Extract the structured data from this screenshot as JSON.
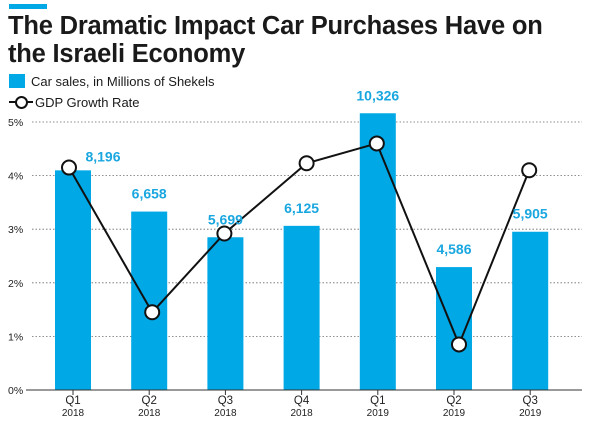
{
  "title": "The Dramatic Impact Car Purchases Have on the Israeli Economy",
  "colors": {
    "accent": "#00a8e6",
    "line": "#111111",
    "label": "#1aa7e0"
  },
  "legend": {
    "bars": "Car sales, in Millions of Shekels",
    "line": "GDP Growth Rate"
  },
  "chart_data": {
    "type": "bar",
    "title": "The Dramatic Impact Car Purchases Have on the Israeli Economy",
    "categories": [
      "Q1",
      "Q2",
      "Q3",
      "Q4",
      "Q1",
      "Q2",
      "Q3"
    ],
    "category_years": [
      "2018",
      "2018",
      "2018",
      "2018",
      "2019",
      "2019",
      "2019"
    ],
    "series": [
      {
        "name": "Car sales, in Millions of Shekels",
        "type": "bar",
        "values": [
          8196,
          6658,
          5699,
          6125,
          10326,
          4586,
          5905
        ],
        "labels": [
          "8,196",
          "6,658",
          "5,699",
          "6,125",
          "10,326",
          "4,586",
          "5,905"
        ]
      },
      {
        "name": "GDP Growth Rate",
        "type": "line",
        "values": [
          4.15,
          1.45,
          2.92,
          4.23,
          4.6,
          0.85,
          4.1
        ]
      }
    ],
    "yticks": [
      "0%",
      "1%",
      "2%",
      "3%",
      "4%",
      "5%"
    ],
    "ylim": [
      0,
      5
    ],
    "grid": true,
    "legend_position": "top-left"
  }
}
